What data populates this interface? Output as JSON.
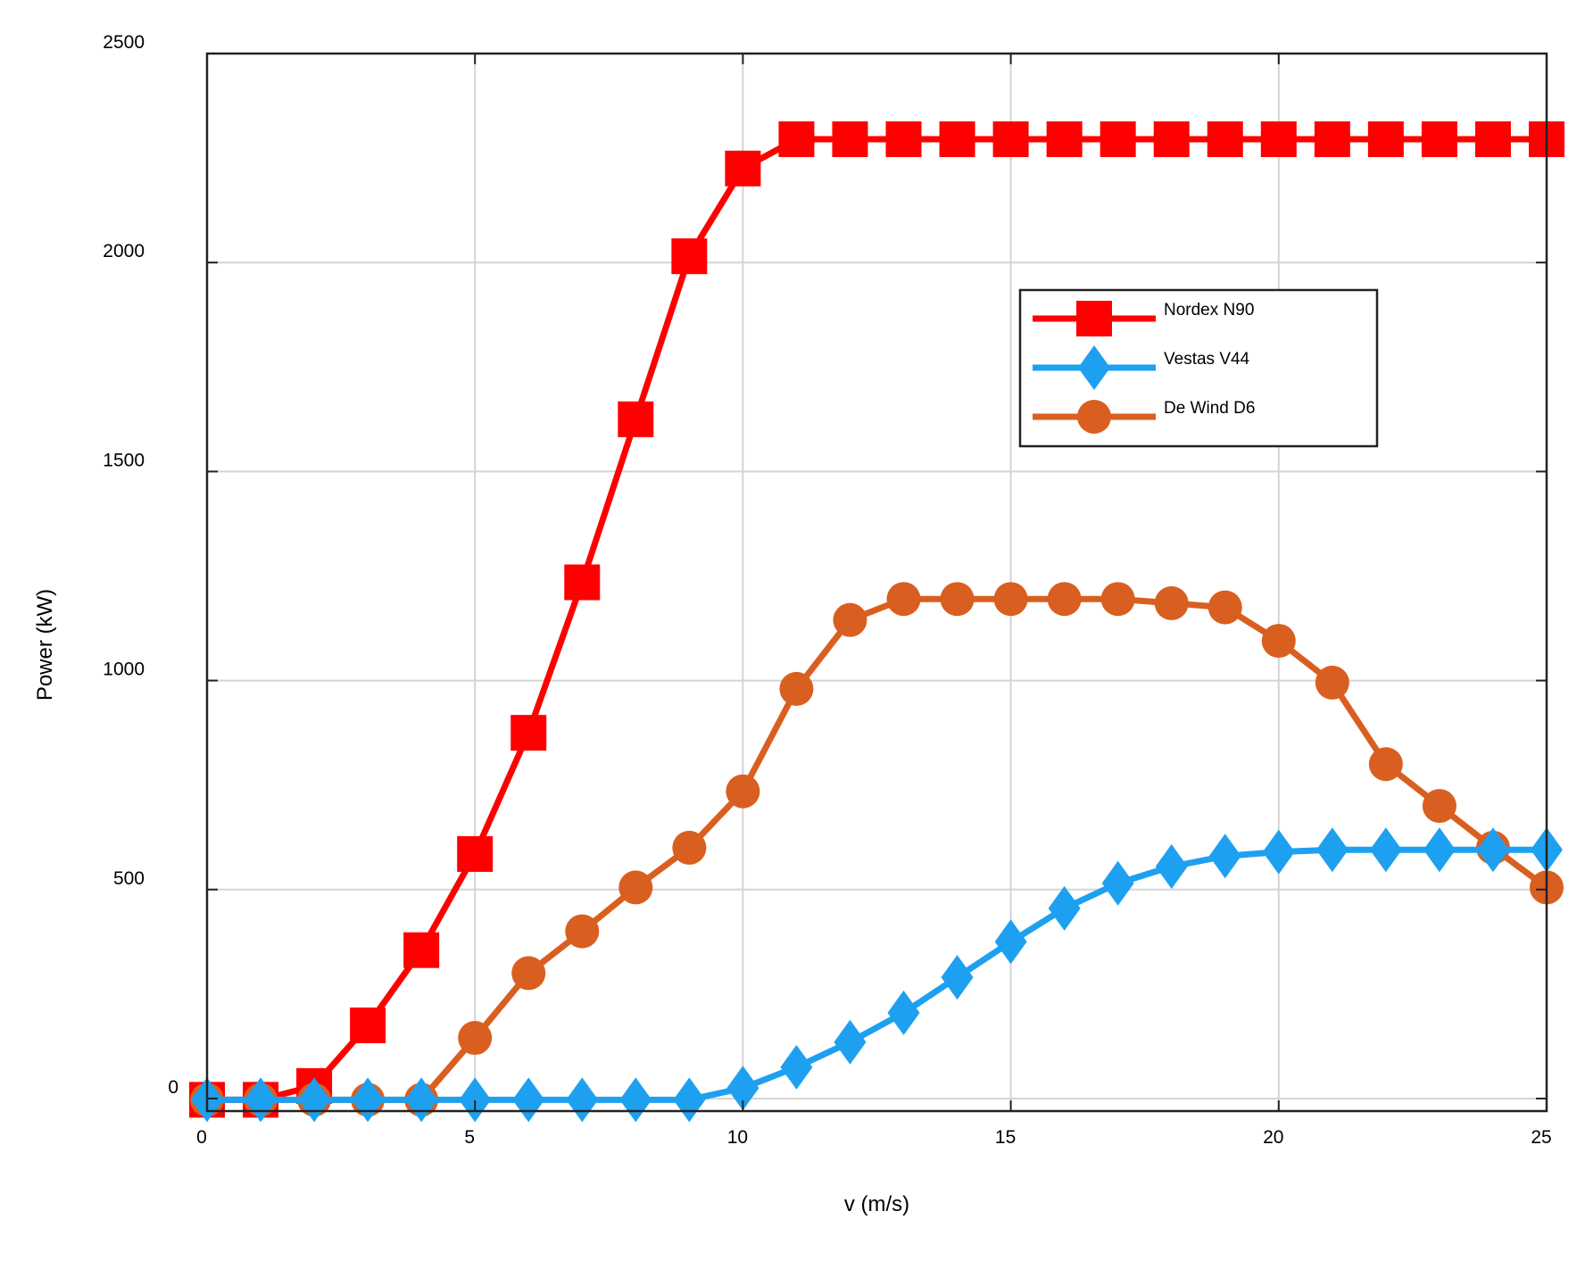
{
  "chart_data": {
    "type": "line",
    "xlabel": "v (m/s)",
    "ylabel": "Power (kW)",
    "xlim": [
      0,
      25
    ],
    "ylim": [
      -30,
      2500
    ],
    "xticks": [
      0,
      5,
      10,
      15,
      20,
      25
    ],
    "yticks": [
      0,
      500,
      1000,
      1500,
      2000,
      2500
    ],
    "grid": true,
    "legend_position": "upper-right inside",
    "x": [
      0,
      1,
      2,
      3,
      4,
      5,
      6,
      7,
      8,
      9,
      10,
      11,
      12,
      13,
      14,
      15,
      16,
      17,
      18,
      19,
      20,
      21,
      22,
      23,
      24,
      25
    ],
    "series": [
      {
        "name": "Nordex N90",
        "color": "#ff0000",
        "marker": "square",
        "values": [
          -3,
          -3,
          30,
          175,
          355,
          585,
          875,
          1235,
          1625,
          2015,
          2225,
          2295,
          2295,
          2295,
          2295,
          2295,
          2295,
          2295,
          2295,
          2295,
          2295,
          2295,
          2295,
          2295,
          2295,
          2295
        ]
      },
      {
        "name": "Vestas V44",
        "color": "#1ea0f0",
        "marker": "diamond",
        "values": [
          -3,
          -3,
          -3,
          -3,
          -3,
          -3,
          -3,
          -3,
          -3,
          -3,
          25,
          75,
          135,
          205,
          290,
          375,
          455,
          515,
          555,
          580,
          590,
          595,
          595,
          595,
          595,
          595
        ]
      },
      {
        "name": "De Wind D6",
        "color": "#d95f20",
        "marker": "circle",
        "values": [
          -3,
          -3,
          -3,
          -3,
          -3,
          145,
          300,
          400,
          505,
          600,
          735,
          980,
          1145,
          1195,
          1195,
          1195,
          1195,
          1195,
          1185,
          1175,
          1095,
          995,
          800,
          700,
          600,
          505
        ]
      }
    ]
  }
}
